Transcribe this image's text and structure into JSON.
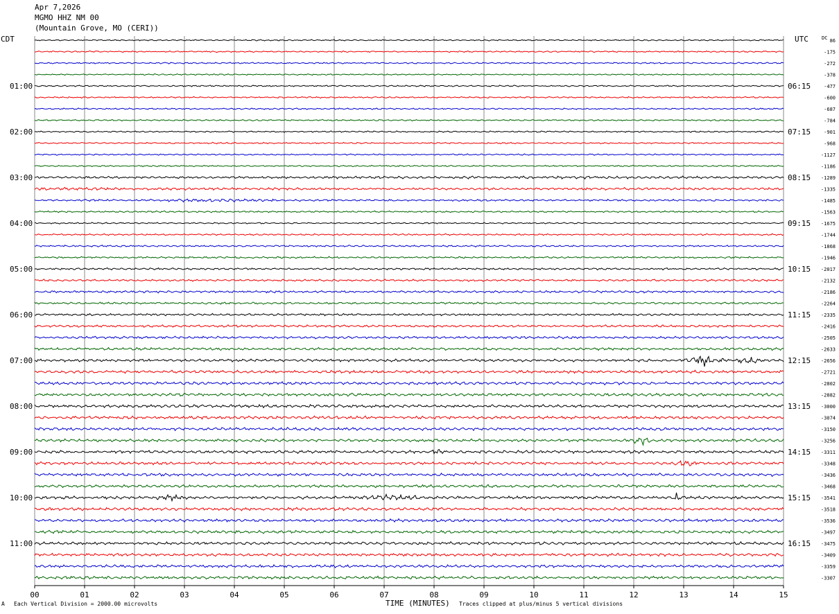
{
  "header": {
    "date": "Apr 7,2026",
    "station": "MGMO HHZ NM 00",
    "location": "(Mountain Grove, MO (CERI))"
  },
  "tz_left": "CDT",
  "tz_right": "UTC",
  "dc_label": "DC",
  "footer": {
    "scale_note": "Each Vertical Division = 2000.00 microvolts",
    "xlabel": "TIME (MINUTES)",
    "clip_note": "Traces clipped at plus/minus 5 vertical divisions",
    "corner_mark": "A"
  },
  "colors": {
    "cycle": [
      "#000000",
      "#ee0000",
      "#0000cc",
      "#006600"
    ],
    "grid": "#8a8a8a"
  },
  "chart_data": {
    "type": "line",
    "title": "",
    "xlabel": "TIME (MINUTES)",
    "xlim": [
      0,
      15
    ],
    "x_ticks": [
      "00",
      "01",
      "02",
      "03",
      "04",
      "05",
      "06",
      "07",
      "08",
      "09",
      "10",
      "11",
      "12",
      "13",
      "14",
      "15"
    ],
    "left_hour_labels": [
      "01:00",
      "02:00",
      "03:00",
      "04:00",
      "05:00",
      "06:00",
      "07:00",
      "08:00",
      "09:00",
      "10:00",
      "11:00"
    ],
    "right_hour_labels": [
      "06:15",
      "07:15",
      "08:15",
      "09:15",
      "10:15",
      "11:15",
      "12:15",
      "13:15",
      "14:15",
      "15:15",
      "16:15"
    ],
    "dc_offsets": [
      "86",
      "-175",
      "-272",
      "-378",
      "-477",
      "-600",
      "-687",
      "-784",
      "-901",
      "-968",
      "-1127",
      "-1186",
      "-1289",
      "-1335",
      "-1485",
      "-1563",
      "-1675",
      "-1744",
      "-1868",
      "-1946",
      "-2017",
      "-2132",
      "-2186",
      "-2264",
      "-2335",
      "-2416",
      "-2505",
      "-2633",
      "-2656",
      "-2721",
      "-2802",
      "-2882",
      "-3000",
      "-3074",
      "-3150",
      "-3256",
      "-3311",
      "-3348",
      "-3436",
      "-3468",
      "-3541",
      "-3518",
      "-3536",
      "-3497",
      "-3475",
      "-3409",
      "-3359",
      "-3307"
    ],
    "trace_amplitude": [
      0.55,
      0.6,
      0.6,
      0.55,
      0.6,
      0.6,
      0.6,
      0.6,
      0.6,
      0.6,
      0.6,
      0.6,
      0.9,
      1.0,
      0.8,
      0.7,
      0.6,
      0.65,
      0.7,
      0.75,
      0.8,
      0.85,
      0.9,
      0.85,
      0.9,
      0.95,
      1.0,
      1.05,
      1.1,
      1.2,
      1.2,
      1.2,
      1.2,
      1.2,
      1.2,
      1.2,
      1.2,
      1.2,
      1.2,
      1.2,
      1.2,
      1.2,
      1.2,
      1.2,
      1.2,
      1.2,
      1.2,
      1.2
    ],
    "events": [
      {
        "trace": 14,
        "start_min": 2.0,
        "end_min": 4.8,
        "amplitude": 1.6
      },
      {
        "trace": 13,
        "start_min": 0.0,
        "end_min": 2.0,
        "amplitude": 1.3
      },
      {
        "trace": 12,
        "start_min": 6.0,
        "end_min": 15.0,
        "amplitude": 1.2
      },
      {
        "trace": 28,
        "start_min": 13.0,
        "end_min": 13.8,
        "amplitude": 5.0
      },
      {
        "trace": 28,
        "start_min": 14.1,
        "end_min": 14.5,
        "amplitude": 5.0
      },
      {
        "trace": 35,
        "start_min": 12.0,
        "end_min": 12.35,
        "amplitude": 4.0
      },
      {
        "trace": 36,
        "start_min": 7.9,
        "end_min": 8.25,
        "amplitude": 2.5
      },
      {
        "trace": 37,
        "start_min": 12.8,
        "end_min": 13.25,
        "amplitude": 3.5
      },
      {
        "trace": 40,
        "start_min": 2.4,
        "end_min": 3.1,
        "amplitude": 3.0
      },
      {
        "trace": 40,
        "start_min": 6.6,
        "end_min": 7.7,
        "amplitude": 3.0
      },
      {
        "trace": 40,
        "start_min": 12.82,
        "end_min": 12.92,
        "amplitude": 6.0
      }
    ]
  }
}
